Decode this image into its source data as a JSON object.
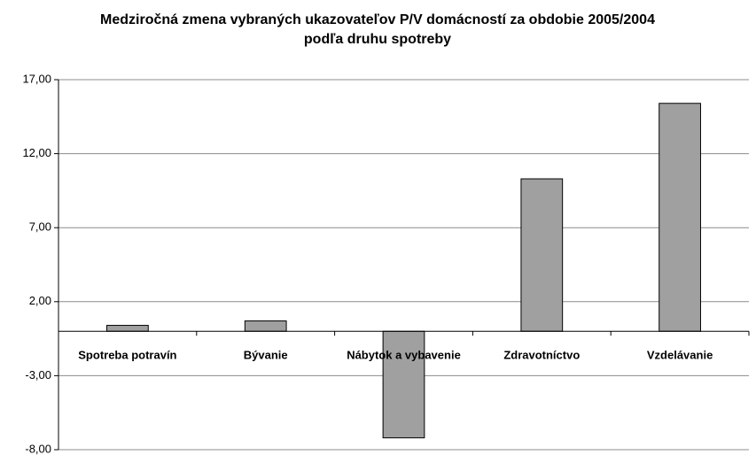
{
  "chart_data": {
    "type": "bar",
    "title": "Medziročná zmena vybraných ukazovateľov P/V domácností za obdobie 2005/2004 podľa druhu spotreby",
    "categories": [
      "Spotreba potravín",
      "Bývanie",
      "Nábytok a vybavenie",
      "Zdravotníctvo",
      "Vzdelávanie"
    ],
    "values": [
      0.4,
      0.7,
      -7.2,
      10.3,
      15.4
    ],
    "color": "#a0a0a0",
    "ylim": [
      -8,
      17
    ],
    "yticks": [
      {
        "value": -8,
        "label": "-8,00"
      },
      {
        "value": -3,
        "label": "-3,00"
      },
      {
        "value": 2,
        "label": "2,00"
      },
      {
        "value": 7,
        "label": "7,00"
      },
      {
        "value": 12,
        "label": "12,00"
      },
      {
        "value": 17,
        "label": "17,00"
      }
    ],
    "grid": true
  }
}
